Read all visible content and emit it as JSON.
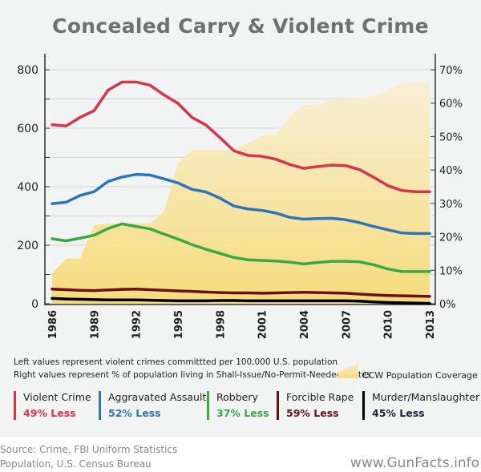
{
  "title": "Concealed Carry & Violent Crime",
  "notes": [
    "Left values represent violent crimes committted per 100,000 U.S. population",
    "Right values represent % of population living in Shall-Issue/No-Permit-Needed States"
  ],
  "ccw_label": "CCW Population Coverage",
  "legend": [
    {
      "name": "Violent Crime",
      "change": "49% Less",
      "color": "#d8344a"
    },
    {
      "name": "Aggravated Assault",
      "change": "52% Less",
      "color": "#2f73b8"
    },
    {
      "name": "Robbery",
      "change": "37% Less",
      "color": "#3aa845"
    },
    {
      "name": "Forcible Rape",
      "change": "59% Less",
      "color": "#6b0f1a"
    },
    {
      "name": "Murder/Manslaughter",
      "change": "45% Less",
      "color": "#000000"
    }
  ],
  "source": [
    "Source: Crime, FBI Uniform Statistics",
    "Population, U.S. Census Bureau"
  ],
  "site": "www.GunFacts.info",
  "chart_data": {
    "type": "line",
    "title": "Concealed Carry & Violent Crime",
    "x": [
      1986,
      1987,
      1988,
      1989,
      1990,
      1991,
      1992,
      1993,
      1994,
      1995,
      1996,
      1997,
      1998,
      1999,
      2000,
      2001,
      2002,
      2003,
      2004,
      2005,
      2006,
      2007,
      2008,
      2009,
      2010,
      2011,
      2012,
      2013
    ],
    "xticks": [
      "1986",
      "1989",
      "1992",
      "1995",
      "1998",
      "2001",
      "2004",
      "2007",
      "2010",
      "2013"
    ],
    "yticks_left": [
      "0",
      "200",
      "400",
      "600",
      "800"
    ],
    "yticks_right": [
      "0%",
      "10%",
      "20%",
      "30%",
      "40%",
      "50%",
      "60%",
      "70%"
    ],
    "ylim_left": [
      0,
      800
    ],
    "ylim_right": [
      0,
      70
    ],
    "grid": true,
    "series": [
      {
        "name": "Violent Crime",
        "axis": "left",
        "color": "#d8344a",
        "values": [
          612,
          608,
          637,
          660,
          730,
          758,
          758,
          747,
          714,
          685,
          637,
          611,
          568,
          523,
          507,
          504,
          494,
          476,
          463,
          469,
          474,
          472,
          458,
          432,
          404,
          387,
          383,
          383
        ]
      },
      {
        "name": "Aggravated Assault",
        "axis": "left",
        "color": "#2f73b8",
        "values": [
          342,
          347,
          370,
          383,
          418,
          433,
          442,
          440,
          427,
          413,
          391,
          382,
          361,
          334,
          324,
          319,
          310,
          295,
          289,
          291,
          292,
          287,
          277,
          264,
          253,
          242,
          240,
          240
        ]
      },
      {
        "name": "Robbery",
        "axis": "left",
        "color": "#3aa845",
        "values": [
          222,
          215,
          224,
          234,
          257,
          273,
          264,
          256,
          238,
          221,
          202,
          186,
          172,
          158,
          150,
          148,
          146,
          142,
          136,
          141,
          145,
          145,
          143,
          133,
          119,
          110,
          110,
          110
        ]
      },
      {
        "name": "Forcible Rape",
        "axis": "left",
        "color": "#6b0f1a",
        "values": [
          50,
          48,
          46,
          45,
          47,
          49,
          50,
          48,
          46,
          44,
          42,
          40,
          38,
          37,
          37,
          36,
          37,
          38,
          39,
          38,
          37,
          36,
          33,
          30,
          28,
          27,
          26,
          25
        ]
      },
      {
        "name": "Murder/Manslaughter",
        "axis": "left",
        "color": "#000000",
        "values": [
          18,
          16,
          15,
          14,
          13,
          13,
          13,
          12,
          11,
          10,
          10,
          10,
          11,
          11,
          10,
          10,
          10,
          10,
          10,
          10,
          10,
          10,
          9,
          6,
          4,
          3,
          2,
          1
        ]
      },
      {
        "name": "CCW Population Coverage",
        "axis": "right",
        "type": "area",
        "color": "#f5dc85",
        "values": [
          9,
          13.5,
          13.5,
          23.5,
          24,
          24,
          24,
          24,
          27.5,
          42,
          46,
          46,
          46,
          46,
          48,
          50.5,
          50.5,
          56,
          59.5,
          59.5,
          61,
          61,
          61.5,
          62,
          64,
          66,
          66,
          66
        ]
      }
    ]
  }
}
